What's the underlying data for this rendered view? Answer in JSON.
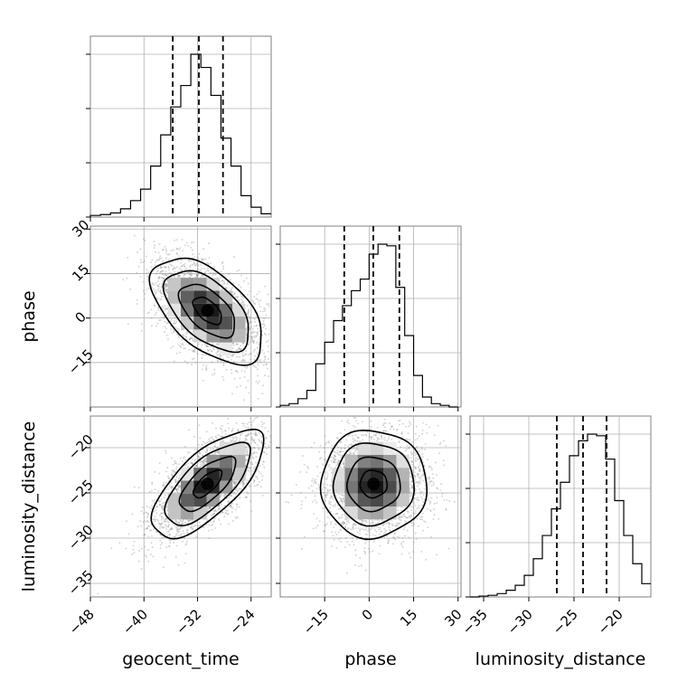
{
  "chart_data": {
    "type": "corner",
    "parameters": [
      "geocent_time",
      "phase",
      "luminosity_distance"
    ],
    "labels": {
      "x": [
        "geocent_time",
        "phase",
        "luminosity_distance"
      ],
      "y": [
        "phase",
        "luminosity_distance"
      ]
    },
    "ranges": {
      "geocent_time": [
        -48,
        -21
      ],
      "phase": [
        -30,
        31
      ],
      "luminosity_distance": [
        -36.5,
        -16.5
      ]
    },
    "ticks": {
      "geocent_time": [
        -48,
        -40,
        -32,
        -24
      ],
      "phase_x": [
        -15,
        0,
        15,
        30
      ],
      "phase_y": [
        -15,
        0,
        15,
        30
      ],
      "luminosity_distance_x": [
        -35,
        -30,
        -25,
        -20
      ],
      "luminosity_distance_y": [
        -35,
        -30,
        -25,
        -20
      ]
    },
    "quantile_lines": {
      "geocent_time": [
        -35.7,
        -31.8,
        -28.2
      ],
      "phase": [
        -8.4,
        1.4,
        10.2
      ],
      "luminosity_distance": [
        -26.9,
        -24.0,
        -21.4
      ]
    },
    "hist_1d": {
      "geocent_time": {
        "edges": [
          -48,
          -46.5,
          -45,
          -43.5,
          -42,
          -40.5,
          -39,
          -37.5,
          -36,
          -34.5,
          -33,
          -31.5,
          -30,
          -28.5,
          -27,
          -25.5,
          -24,
          -22.5,
          -21
        ],
        "counts": [
          0.01,
          0.015,
          0.025,
          0.05,
          0.1,
          0.17,
          0.31,
          0.5,
          0.67,
          0.8,
          0.99,
          0.91,
          0.74,
          0.48,
          0.31,
          0.13,
          0.06,
          0.02
        ]
      },
      "phase": {
        "edges": [
          -30,
          -27,
          -24,
          -21,
          -18,
          -15,
          -12,
          -9,
          -6,
          -3,
          0,
          3,
          6,
          9,
          12,
          15,
          18,
          21,
          24,
          27,
          30
        ],
        "counts": [
          0.01,
          0.02,
          0.05,
          0.1,
          0.26,
          0.39,
          0.52,
          0.61,
          0.7,
          0.77,
          0.92,
          0.98,
          0.97,
          0.72,
          0.43,
          0.19,
          0.06,
          0.02,
          0.01,
          0.0
        ]
      },
      "luminosity_distance": {
        "edges": [
          -36.5,
          -35.5,
          -34.5,
          -33.5,
          -32.5,
          -31.5,
          -30.5,
          -29.5,
          -28.5,
          -27.5,
          -26.5,
          -25.5,
          -24.5,
          -23.5,
          -22.5,
          -21.5,
          -20.5,
          -19.5,
          -18.5,
          -17.5,
          -16.5
        ],
        "counts": [
          0.0,
          0.005,
          0.01,
          0.02,
          0.04,
          0.07,
          0.13,
          0.23,
          0.37,
          0.53,
          0.69,
          0.85,
          0.94,
          0.98,
          0.97,
          0.83,
          0.58,
          0.37,
          0.2,
          0.08
        ]
      }
    },
    "hist_2d": [
      {
        "x": "geocent_time",
        "y": "phase",
        "mean": [
          -30.5,
          2.5
        ],
        "sd": [
          4.2,
          9.0
        ],
        "corr": -0.55
      },
      {
        "x": "geocent_time",
        "y": "luminosity_distance",
        "mean": [
          -30.5,
          -24.0
        ],
        "sd": [
          4.2,
          3.0
        ],
        "corr": 0.7
      },
      {
        "x": "phase",
        "y": "luminosity_distance",
        "mean": [
          1.5,
          -24.0
        ],
        "sd": [
          9.0,
          3.0
        ],
        "corr": 0.0
      }
    ],
    "contour_levels": [
      0.12,
      0.39,
      0.68,
      0.86
    ],
    "grid": true,
    "legend": "none",
    "colors": {
      "line": "#000000",
      "grid": "#b0b0b0",
      "frame": "#808080"
    }
  }
}
